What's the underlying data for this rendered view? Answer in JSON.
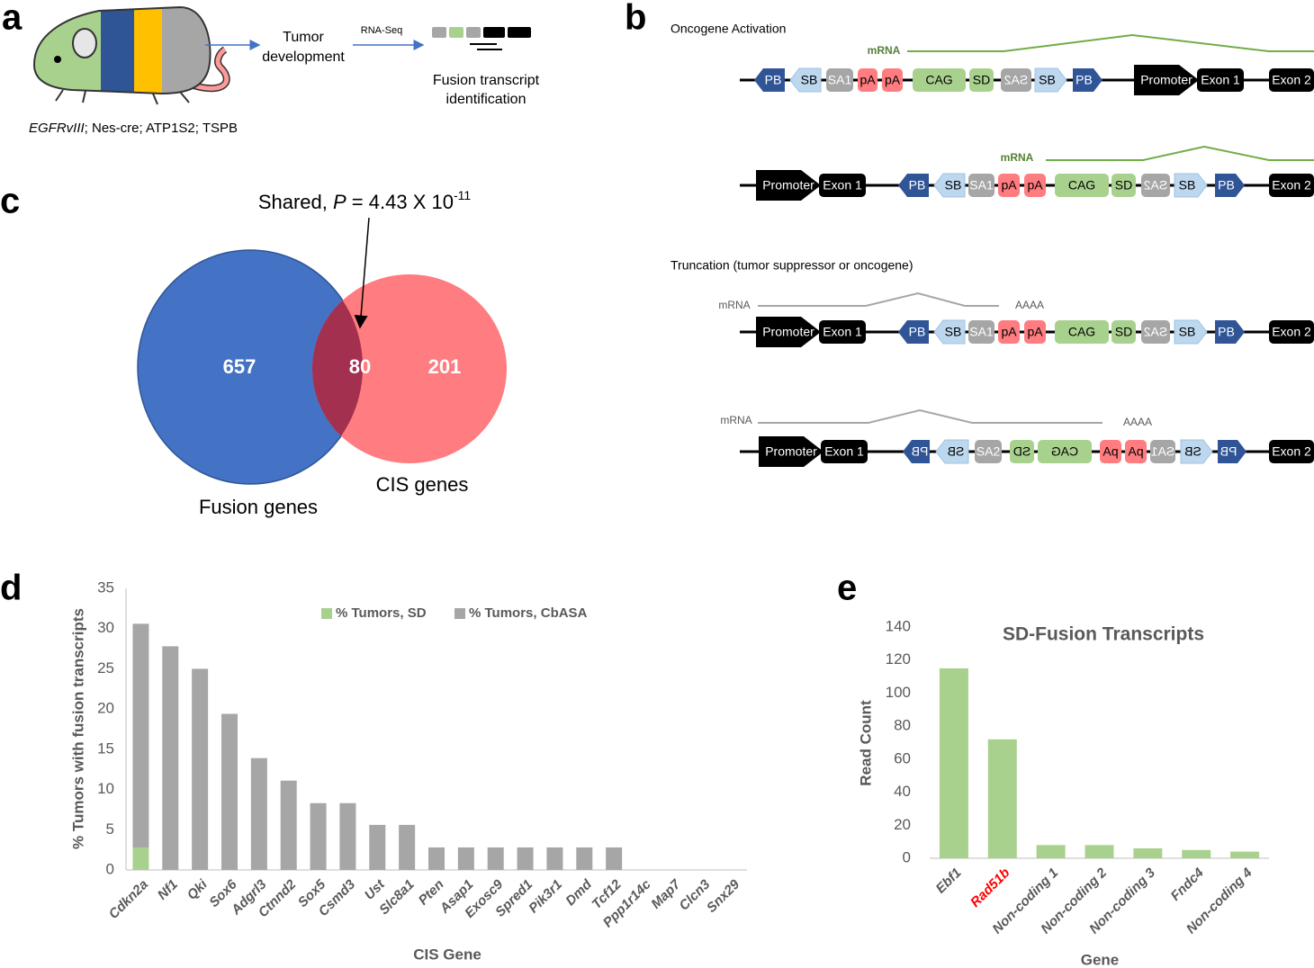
{
  "panel_labels": [
    "a",
    "b",
    "c",
    "d",
    "e"
  ],
  "panel_a": {
    "steps": [
      [
        "Tumor",
        "development"
      ],
      [
        "Fusion transcript",
        "identification"
      ]
    ],
    "method": "RNA-Seq",
    "genotype": {
      "italic": "EGFRvIII",
      "rest": "; Nes-cre; ATP1S2; TSPB"
    }
  },
  "panel_b": {
    "headings": [
      "Oncogene Activation",
      "Truncation (tumor suppressor or oncogene)"
    ],
    "constructs": [
      {
        "mrna": "mRNA",
        "mrna_color": "#70ad47",
        "elements": [
          {
            "label": "PB",
            "color": "#2f5597"
          },
          {
            "label": "SB",
            "color": "#bdd7ee"
          },
          {
            "label": "SA1",
            "color": "#a6a6a6"
          },
          {
            "label": "pA",
            "color": "#ff7c80"
          },
          {
            "label": "pA",
            "color": "#ff7c80"
          },
          {
            "label": "CAG",
            "color": "#a9d18e"
          },
          {
            "label": "SD",
            "color": "#a9d18e"
          },
          {
            "label": "SA2",
            "color": "#a6a6a6"
          },
          {
            "label": "SB",
            "color": "#bdd7ee"
          },
          {
            "label": "PB",
            "color": "#2f5597"
          },
          {
            "label": "Promoter",
            "color": "#000000"
          },
          {
            "label": "Exon 1",
            "color": "#000000"
          },
          {
            "label": "Exon 2",
            "color": "#000000"
          }
        ]
      },
      {
        "mrna": "mRNA",
        "mrna_color": "#70ad47",
        "elements": [
          {
            "label": "Promoter",
            "color": "#000000"
          },
          {
            "label": "Exon 1",
            "color": "#000000"
          },
          {
            "label": "PB",
            "color": "#2f5597"
          },
          {
            "label": "SB",
            "color": "#bdd7ee"
          },
          {
            "label": "SA1",
            "color": "#a6a6a6"
          },
          {
            "label": "pA",
            "color": "#ff7c80"
          },
          {
            "label": "pA",
            "color": "#ff7c80"
          },
          {
            "label": "CAG",
            "color": "#a9d18e"
          },
          {
            "label": "SD",
            "color": "#a9d18e"
          },
          {
            "label": "SA2",
            "color": "#a6a6a6"
          },
          {
            "label": "SB",
            "color": "#bdd7ee"
          },
          {
            "label": "PB",
            "color": "#2f5597"
          },
          {
            "label": "Exon 2",
            "color": "#000000"
          }
        ]
      },
      {
        "mrna": "mRNA",
        "mrna_color": "#a6a6a6",
        "tail": "AAAA",
        "elements": [
          {
            "label": "Promoter",
            "color": "#000000"
          },
          {
            "label": "Exon 1",
            "color": "#000000"
          },
          {
            "label": "PB",
            "color": "#2f5597"
          },
          {
            "label": "SB",
            "color": "#bdd7ee"
          },
          {
            "label": "SA1",
            "color": "#a6a6a6"
          },
          {
            "label": "pA",
            "color": "#ff7c80"
          },
          {
            "label": "pA",
            "color": "#ff7c80"
          },
          {
            "label": "CAG",
            "color": "#a9d18e"
          },
          {
            "label": "SD",
            "color": "#a9d18e"
          },
          {
            "label": "SA2",
            "color": "#a6a6a6"
          },
          {
            "label": "SB",
            "color": "#bdd7ee"
          },
          {
            "label": "PB",
            "color": "#2f5597"
          },
          {
            "label": "Exon 2",
            "color": "#000000"
          }
        ]
      },
      {
        "mrna": "mRNA",
        "mrna_color": "#a6a6a6",
        "tail": "AAAA",
        "elements": [
          {
            "label": "Promoter",
            "color": "#000000"
          },
          {
            "label": "Exon 1",
            "color": "#000000"
          },
          {
            "label": "PB",
            "color": "#2f5597"
          },
          {
            "label": "SB",
            "color": "#bdd7ee"
          },
          {
            "label": "SA2",
            "color": "#a6a6a6"
          },
          {
            "label": "SD",
            "color": "#a9d18e"
          },
          {
            "label": "CAG",
            "color": "#a9d18e"
          },
          {
            "label": "pA",
            "color": "#ff7c80"
          },
          {
            "label": "pA",
            "color": "#ff7c80"
          },
          {
            "label": "SA1",
            "color": "#a6a6a6"
          },
          {
            "label": "SB",
            "color": "#bdd7ee"
          },
          {
            "label": "PB",
            "color": "#2f5597"
          },
          {
            "label": "Exon 2",
            "color": "#000000"
          }
        ]
      }
    ]
  },
  "panel_c": {
    "annotation": {
      "prefix": "Shared, ",
      "p": "P",
      "mid": " = 4.43 X 10",
      "exp": "-11"
    },
    "sets": [
      {
        "name": "Fusion genes",
        "only": 657,
        "color": "#4472c4"
      },
      {
        "name": "CIS genes",
        "only": 201,
        "color": "#ff7c80"
      }
    ],
    "shared": 80,
    "shared_color": "#a3304e"
  },
  "chart_data": [
    {
      "type": "bar",
      "stacked": true,
      "y_label": "% Tumors with fusion transcripts",
      "x_label": "CIS Gene",
      "legend": "top",
      "categories": [
        "Cdkn2a",
        "Nf1",
        "Qki",
        "Sox6",
        "Adgrl3",
        "Ctnnd2",
        "Sox5",
        "Csmd3",
        "Ust",
        "Slc8a1",
        "Pten",
        "Asap1",
        "Exosc9",
        "Spred1",
        "Pik3r1",
        "Dmd",
        "Tcf12",
        "Ppp1r14c",
        "Map7",
        "Clcn3",
        "Snx29"
      ],
      "series": [
        {
          "name": "% Tumors, SD",
          "color": "#a9d18e",
          "values": [
            2.8,
            0,
            0,
            0,
            0,
            0,
            0,
            0,
            0,
            0,
            0,
            0,
            0,
            0,
            0,
            0,
            0,
            0,
            0,
            0,
            0
          ]
        },
        {
          "name": "% Tumors, CbASA",
          "color": "#a6a6a6",
          "values": [
            27.8,
            27.8,
            25,
            19.4,
            13.9,
            11.1,
            8.3,
            8.3,
            5.6,
            5.6,
            2.8,
            2.8,
            2.8,
            2.8,
            2.8,
            2.8,
            2.8,
            0,
            0,
            0,
            0
          ]
        }
      ],
      "ylim": [
        0,
        35
      ],
      "yticks": [
        0,
        5,
        10,
        15,
        20,
        25,
        30,
        35
      ]
    },
    {
      "type": "bar",
      "title": "SD-Fusion Transcripts",
      "y_label": "Read Count",
      "x_label": "Gene",
      "categories": [
        "Ebf1",
        "Rad51b",
        "Non-coding 1",
        "Non-coding 2",
        "Non-coding 3",
        "Fndc4",
        "Non-coding 4"
      ],
      "category_colors": [
        "#595959",
        "#ff0000",
        "#595959",
        "#595959",
        "#595959",
        "#595959",
        "#595959"
      ],
      "values": [
        115,
        72,
        8,
        8,
        6,
        5,
        4
      ],
      "color": "#a9d18e",
      "ylim": [
        0,
        140
      ],
      "yticks": [
        0,
        20,
        40,
        60,
        80,
        100,
        120,
        140
      ]
    }
  ]
}
